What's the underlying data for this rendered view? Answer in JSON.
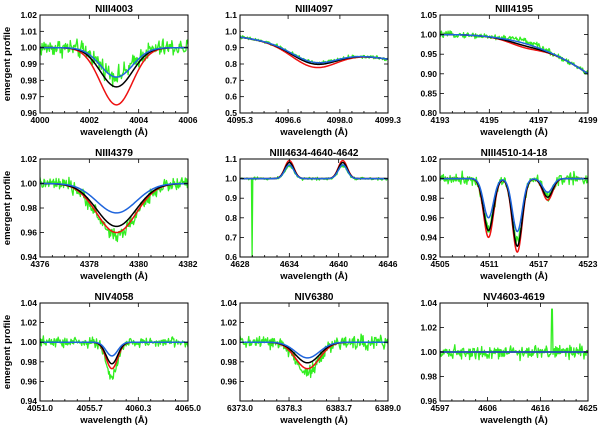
{
  "figure": {
    "colors": {
      "observed": "#33ee22",
      "model_red": "#ee1111",
      "model_black": "#000000",
      "model_blue": "#1e64dc"
    }
  },
  "chart_data": [
    {
      "type": "line",
      "title": "NIII4003",
      "xlabel": "wavelength (Å)",
      "ylabel": "emergent profile",
      "xlim": [
        4000,
        4006
      ],
      "ylim": [
        0.96,
        1.02
      ],
      "xticks": [
        "4000",
        "4002",
        "4004",
        "4006"
      ],
      "yticks": [
        "0.96",
        "0.97",
        "0.98",
        "0.99",
        "1.00",
        "1.01",
        "1.02"
      ],
      "line": {
        "kind": "absorption",
        "center": 4003.1,
        "width": 0.65
      },
      "series": [
        {
          "color": "model_red",
          "min": 0.965
        },
        {
          "color": "model_black",
          "min": 0.976
        },
        {
          "color": "model_blue",
          "min": 0.982
        },
        {
          "color": "observed",
          "min": 0.983,
          "noise": 0.006
        }
      ]
    },
    {
      "type": "line",
      "title": "NIII4097",
      "xlabel": "wavelength (Å)",
      "ylabel": "",
      "xlim": [
        4095.3,
        4099.3
      ],
      "ylim": [
        0.5,
        1.1
      ],
      "xticks": [
        "4095.3",
        "4096.6",
        "4098.0",
        "4099.3"
      ],
      "yticks": [
        "0.5",
        "0.6",
        "0.7",
        "0.8",
        "0.9",
        "1.0",
        "1.1"
      ],
      "line": {
        "kind": "absorption",
        "center": 4097.3,
        "width": 0.6
      },
      "continuum": {
        "kind": "linear",
        "start": 0.965,
        "end": 0.83
      },
      "series": [
        {
          "color": "model_red",
          "min": 0.78
        },
        {
          "color": "model_black",
          "min": 0.8
        },
        {
          "color": "model_blue",
          "min": 0.81
        },
        {
          "color": "observed",
          "min": 0.81,
          "noise": 0.012
        }
      ]
    },
    {
      "type": "line",
      "title": "NIII4195",
      "xlabel": "wavelength (Å)",
      "ylabel": "",
      "xlim": [
        4193,
        4199
      ],
      "ylim": [
        0.8,
        1.05
      ],
      "xticks": [
        "4193",
        "4195",
        "4197",
        "4199"
      ],
      "yticks": [
        "0.80",
        "0.85",
        "0.90",
        "0.95",
        "1.00",
        "1.05"
      ],
      "line": {
        "kind": "absorption",
        "center": 4196.4,
        "width": 0.6
      },
      "continuum": {
        "kind": "curve",
        "start": 1.0,
        "end": 0.9
      },
      "series": [
        {
          "color": "model_red",
          "min": 0.967
        },
        {
          "color": "model_black",
          "min": 0.972
        },
        {
          "color": "model_blue",
          "min": 0.978
        },
        {
          "color": "observed",
          "min": 0.985,
          "noise": 0.008
        }
      ]
    },
    {
      "type": "line",
      "title": "NIII4379",
      "xlabel": "wavelength (Å)",
      "ylabel": "emergent profile",
      "xlim": [
        4376,
        4382
      ],
      "ylim": [
        0.94,
        1.02
      ],
      "xticks": [
        "4376",
        "4378",
        "4380",
        "4382"
      ],
      "yticks": [
        "0.94",
        "0.96",
        "0.98",
        "1.00",
        "1.02"
      ],
      "line": {
        "kind": "absorption",
        "center": 4379.1,
        "width": 0.8
      },
      "series": [
        {
          "color": "model_red",
          "min": 0.96
        },
        {
          "color": "model_black",
          "min": 0.965
        },
        {
          "color": "model_blue",
          "min": 0.976
        },
        {
          "color": "observed",
          "min": 0.958,
          "noise": 0.006
        }
      ]
    },
    {
      "type": "line",
      "title": "NIII4634-4640-4642",
      "xlabel": "wavelength (Å)",
      "ylabel": "",
      "xlim": [
        4628,
        4646
      ],
      "ylim": [
        0.6,
        1.1
      ],
      "xticks": [
        "4628",
        "4634",
        "4640",
        "4646"
      ],
      "yticks": [
        "0.6",
        "0.7",
        "0.8",
        "0.9",
        "1.0",
        "1.1"
      ],
      "line": {
        "kind": "emission",
        "centers": [
          4634.0,
          4640.5
        ],
        "width": 0.55
      },
      "observed_dip": {
        "at": 4629.5,
        "min": 0.6
      },
      "series": [
        {
          "color": "model_red",
          "max": 1.092
        },
        {
          "color": "model_black",
          "max": 1.082
        },
        {
          "color": "model_blue",
          "max": 1.07
        },
        {
          "color": "observed",
          "max": 1.065,
          "noise": 0.008
        }
      ]
    },
    {
      "type": "line",
      "title": "NIII4510-14-18",
      "xlabel": "wavelength (Å)",
      "ylabel": "",
      "xlim": [
        4505,
        4523
      ],
      "ylim": [
        0.92,
        1.02
      ],
      "xticks": [
        "4505",
        "4511",
        "4517",
        "4523"
      ],
      "yticks": [
        "0.92",
        "0.94",
        "0.96",
        "0.98",
        "1.00",
        "1.02"
      ],
      "line": {
        "kind": "absorption",
        "centers": [
          4510.9,
          4514.4,
          4518.1
        ],
        "width": 0.6
      },
      "series": [
        {
          "color": "model_red",
          "mins": [
            0.94,
            0.925,
            0.978
          ]
        },
        {
          "color": "model_black",
          "mins": [
            0.947,
            0.931,
            0.981
          ]
        },
        {
          "color": "model_blue",
          "mins": [
            0.96,
            0.946,
            0.986
          ]
        },
        {
          "color": "observed",
          "mins": [
            0.948,
            0.935,
            0.983
          ],
          "noise": 0.007
        }
      ]
    },
    {
      "type": "line",
      "title": "NIV4058",
      "xlabel": "wavelength (Å)",
      "ylabel": "emergent profile",
      "xlim": [
        4051.0,
        4065.0
      ],
      "ylim": [
        0.94,
        1.04
      ],
      "xticks": [
        "4051.0",
        "4055.7",
        "4060.3",
        "4065.0"
      ],
      "yticks": [
        "0.94",
        "0.96",
        "0.98",
        "1.00",
        "1.02",
        "1.04"
      ],
      "line": {
        "kind": "absorption",
        "center": 4057.8,
        "width": 0.55
      },
      "series": [
        {
          "color": "model_red",
          "min": 0.973
        },
        {
          "color": "model_black",
          "min": 0.978
        },
        {
          "color": "model_blue",
          "min": 0.986
        },
        {
          "color": "observed",
          "min": 0.965,
          "noise": 0.006
        }
      ]
    },
    {
      "type": "line",
      "title": "NIV6380",
      "xlabel": "wavelength (Å)",
      "ylabel": "",
      "xlim": [
        6373.0,
        6389.0
      ],
      "ylim": [
        0.94,
        1.04
      ],
      "xticks": [
        "6373.0",
        "6378.3",
        "6383.7",
        "6389.0"
      ],
      "yticks": [
        "0.96",
        "0.98",
        "1.00",
        "1.02",
        "1.04"
      ],
      "line": {
        "kind": "absorption",
        "center": 6380.3,
        "width": 1.3
      },
      "series": [
        {
          "color": "model_red",
          "min": 0.973
        },
        {
          "color": "model_black",
          "min": 0.979
        },
        {
          "color": "model_blue",
          "min": 0.984
        },
        {
          "color": "observed",
          "min": 0.97,
          "noise": 0.008
        }
      ]
    },
    {
      "type": "line",
      "title": "NV4603-4619",
      "xlabel": "wavelength (Å)",
      "ylabel": "",
      "xlim": [
        4597,
        4625
      ],
      "ylim": [
        0.96,
        1.04
      ],
      "xticks": [
        "4597",
        "4606",
        "4616",
        "4625"
      ],
      "yticks": [
        "0.96",
        "0.98",
        "1.00",
        "1.02",
        "1.04"
      ],
      "line": {
        "kind": "flat"
      },
      "observed_spike": {
        "at": 4618.2,
        "max": 1.035
      },
      "series": [
        {
          "color": "model_red",
          "min": 1.0
        },
        {
          "color": "model_black",
          "min": 1.0
        },
        {
          "color": "model_blue",
          "min": 1.0
        },
        {
          "color": "observed",
          "min": 1.0,
          "noise": 0.006
        }
      ]
    }
  ]
}
